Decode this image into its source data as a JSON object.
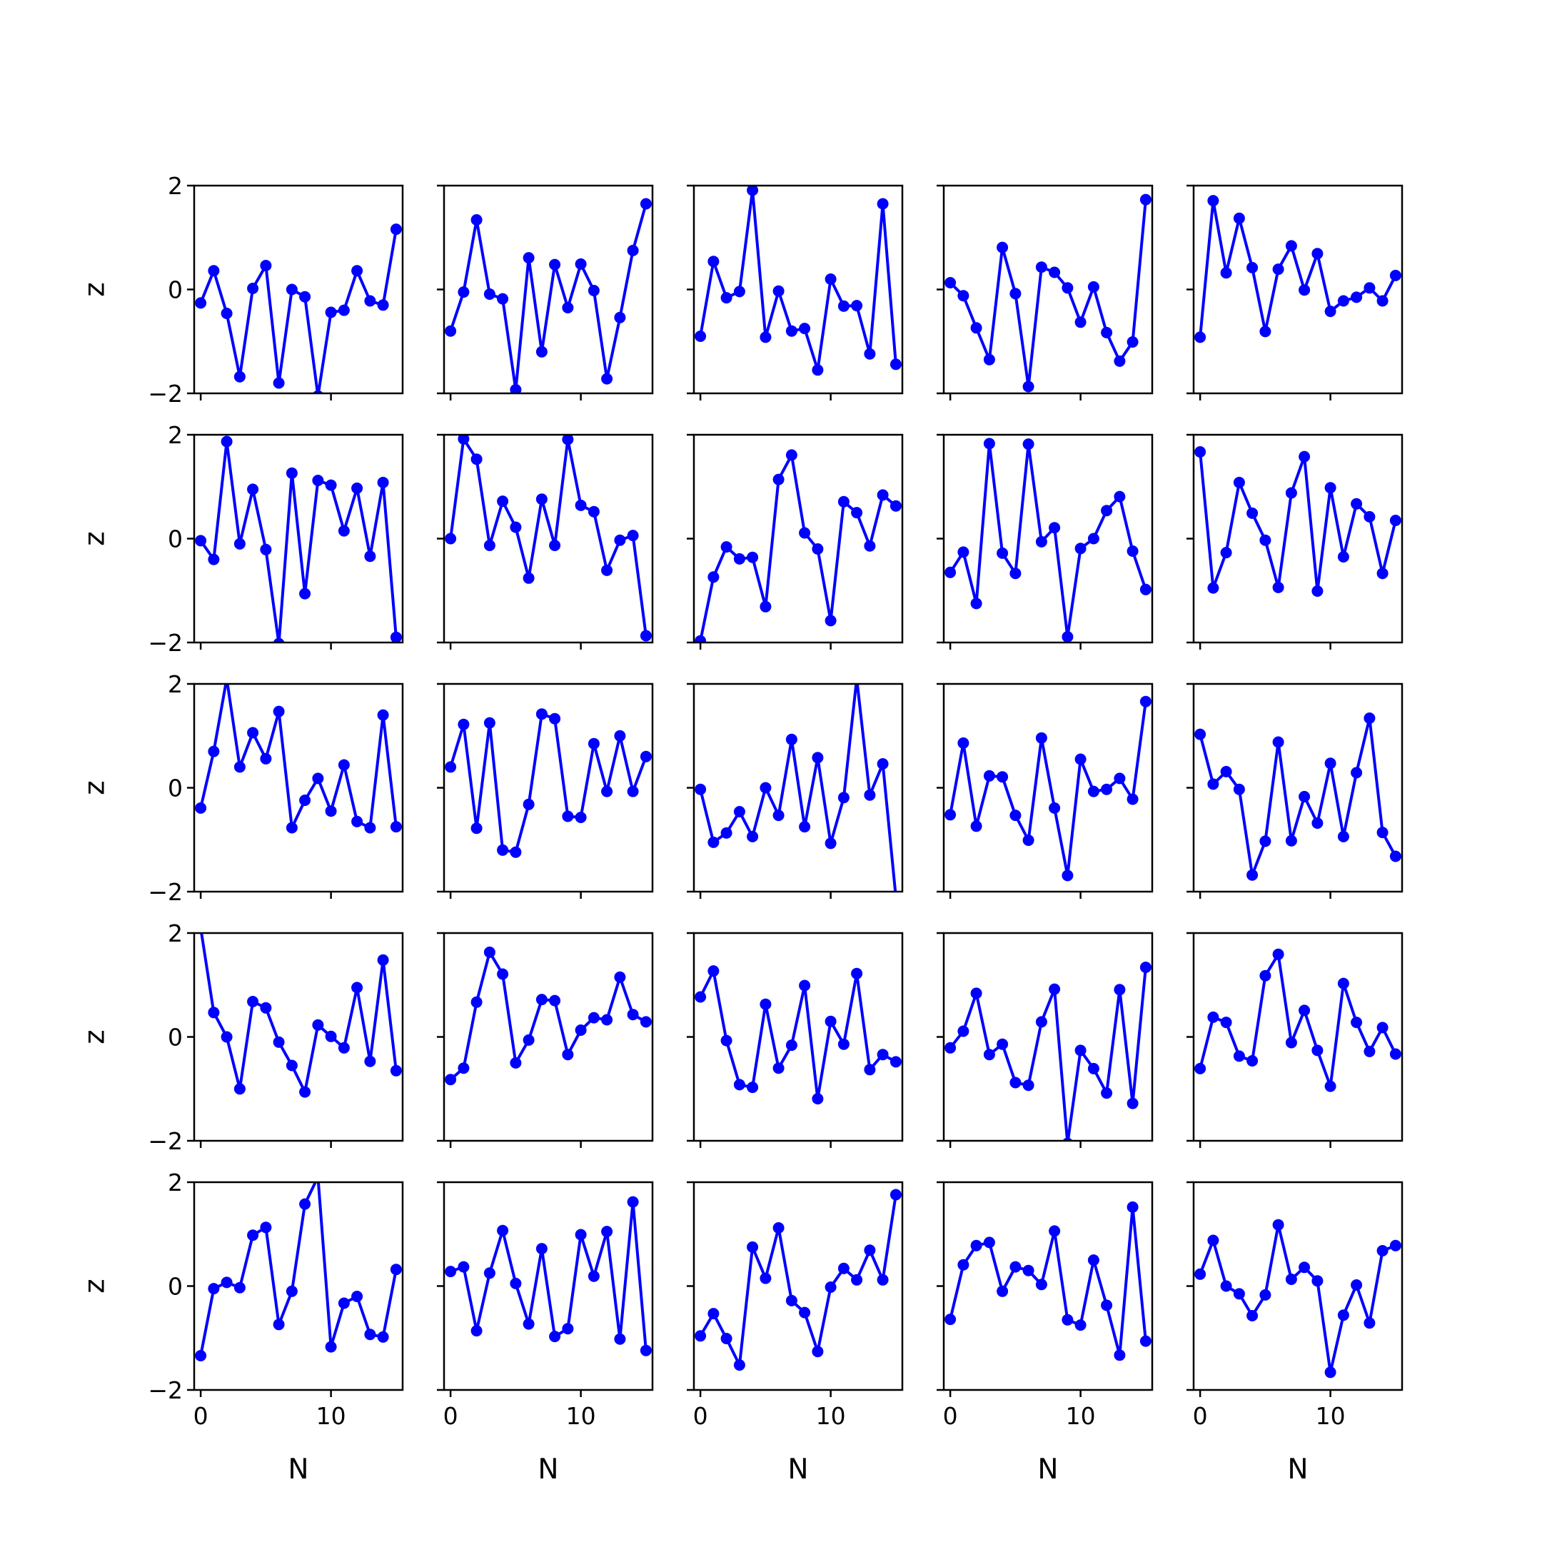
{
  "chart_data": {
    "type": "line",
    "layout": {
      "rows": 5,
      "cols": 5,
      "sharex": true,
      "sharey": true
    },
    "x": [
      0,
      1,
      2,
      3,
      4,
      5,
      6,
      7,
      8,
      9,
      10,
      11,
      12,
      13,
      14,
      15
    ],
    "xlim": [
      -0.5,
      15.5
    ],
    "ylim": [
      -2,
      2
    ],
    "xticks": [
      0,
      10
    ],
    "yticks": [
      -2,
      0,
      2
    ],
    "xtick_labels": [
      "0",
      "10"
    ],
    "ytick_labels": [
      "−2",
      "0",
      "2"
    ],
    "xlabel": "N",
    "ylabel": "z",
    "line_color": "#0000ff",
    "marker": "circle",
    "grid": false,
    "subplots": [
      [
        -0.26,
        0.36,
        -0.46,
        -1.68,
        0.02,
        0.46,
        -1.8,
        0.0,
        -0.14,
        -2.05,
        -0.44,
        -0.4,
        0.36,
        -0.22,
        -0.3,
        1.16
      ],
      [
        -0.8,
        -0.05,
        1.34,
        -0.09,
        -0.18,
        -1.93,
        0.61,
        -1.2,
        0.48,
        -0.35,
        0.49,
        -0.02,
        -1.72,
        -0.54,
        0.75,
        1.65
      ],
      [
        -0.9,
        0.54,
        -0.16,
        -0.04,
        1.91,
        -0.92,
        -0.03,
        -0.8,
        -0.75,
        -1.55,
        0.2,
        -0.32,
        -0.31,
        -1.24,
        1.65,
        -1.44
      ],
      [
        0.13,
        -0.12,
        -0.74,
        -1.35,
        0.81,
        -0.08,
        -1.87,
        0.43,
        0.33,
        0.03,
        -0.63,
        0.05,
        -0.83,
        -1.38,
        -1.01,
        1.73
      ],
      [
        -0.92,
        1.71,
        0.32,
        1.37,
        0.42,
        -0.81,
        0.39,
        0.84,
        -0.01,
        0.69,
        -0.42,
        -0.22,
        -0.15,
        0.03,
        -0.22,
        0.27
      ],
      [
        -0.04,
        -0.4,
        1.87,
        -0.1,
        0.95,
        -0.21,
        -2.02,
        1.26,
        -1.06,
        1.12,
        1.03,
        0.15,
        0.97,
        -0.34,
        1.08,
        -1.9
      ],
      [
        0.0,
        1.92,
        1.53,
        -0.13,
        0.72,
        0.22,
        -0.76,
        0.76,
        -0.13,
        1.91,
        0.64,
        0.52,
        -0.61,
        -0.03,
        0.06,
        -1.87
      ],
      [
        -1.97,
        -0.74,
        -0.16,
        -0.39,
        -0.36,
        -1.31,
        1.14,
        1.61,
        0.11,
        -0.2,
        -1.58,
        0.71,
        0.5,
        -0.14,
        0.84,
        0.63
      ],
      [
        -0.65,
        -0.26,
        -1.25,
        1.83,
        -0.28,
        -0.67,
        1.82,
        -0.06,
        0.21,
        -1.89,
        -0.19,
        0.0,
        0.54,
        0.81,
        -0.24,
        -0.98
      ],
      [
        1.67,
        -0.95,
        -0.27,
        1.08,
        0.49,
        -0.03,
        -0.94,
        0.88,
        1.58,
        -1.01,
        0.98,
        -0.35,
        0.67,
        0.42,
        -0.67,
        0.35
      ],
      [
        -0.39,
        0.7,
        2.1,
        0.4,
        1.06,
        0.56,
        1.47,
        -0.77,
        -0.24,
        0.18,
        -0.45,
        0.44,
        -0.65,
        -0.77,
        1.4,
        -0.75
      ],
      [
        0.4,
        1.22,
        -0.78,
        1.25,
        -1.2,
        -1.24,
        -0.32,
        1.42,
        1.33,
        -0.55,
        -0.57,
        0.85,
        -0.07,
        1.0,
        -0.07,
        0.6
      ],
      [
        -0.03,
        -1.05,
        -0.87,
        -0.46,
        -0.94,
        0.0,
        -0.53,
        0.93,
        -0.75,
        0.58,
        -1.07,
        -0.19,
        2.1,
        -0.14,
        0.46,
        -2.1
      ],
      [
        -0.52,
        0.86,
        -0.74,
        0.23,
        0.21,
        -0.53,
        -1.01,
        0.96,
        -0.39,
        -1.69,
        0.55,
        -0.07,
        -0.03,
        0.18,
        -0.22,
        1.66
      ],
      [
        1.03,
        0.07,
        0.31,
        -0.03,
        -1.68,
        -1.03,
        0.88,
        -1.02,
        -0.17,
        -0.68,
        0.47,
        -0.94,
        0.29,
        1.34,
        -0.86,
        -1.32
      ],
      [
        2.1,
        0.47,
        0.0,
        -1.0,
        0.68,
        0.56,
        -0.1,
        -0.55,
        -1.06,
        0.23,
        0.01,
        -0.21,
        0.95,
        -0.47,
        1.48,
        -0.65
      ],
      [
        -0.82,
        -0.6,
        0.67,
        1.63,
        1.21,
        -0.5,
        -0.06,
        0.72,
        0.7,
        -0.34,
        0.13,
        0.37,
        0.33,
        1.15,
        0.43,
        0.29
      ],
      [
        0.77,
        1.27,
        -0.07,
        -0.92,
        -0.97,
        0.63,
        -0.6,
        -0.16,
        0.99,
        -1.19,
        0.3,
        -0.14,
        1.22,
        -0.63,
        -0.34,
        -0.48
      ],
      [
        -0.21,
        0.11,
        0.84,
        -0.34,
        -0.14,
        -0.88,
        -0.93,
        0.29,
        0.92,
        -2.05,
        -0.26,
        -0.61,
        -1.08,
        0.91,
        -1.28,
        1.34
      ],
      [
        -0.61,
        0.38,
        0.28,
        -0.37,
        -0.46,
        1.18,
        1.59,
        -0.11,
        0.51,
        -0.26,
        -0.95,
        1.03,
        0.28,
        -0.28,
        0.18,
        -0.33
      ],
      [
        -1.34,
        -0.05,
        0.07,
        -0.03,
        0.98,
        1.13,
        -0.74,
        -0.1,
        1.58,
        2.1,
        -1.17,
        -0.33,
        -0.2,
        -0.93,
        -0.98,
        0.32
      ],
      [
        0.28,
        0.37,
        -0.86,
        0.25,
        1.07,
        0.05,
        -0.73,
        0.72,
        -0.97,
        -0.82,
        0.99,
        0.19,
        1.05,
        -1.02,
        1.62,
        -1.24
      ],
      [
        -0.96,
        -0.53,
        -1.01,
        -1.52,
        0.75,
        0.15,
        1.12,
        -0.28,
        -0.51,
        -1.26,
        -0.02,
        0.34,
        0.12,
        0.69,
        0.12,
        1.76
      ],
      [
        -0.64,
        0.41,
        0.78,
        0.84,
        -0.1,
        0.37,
        0.3,
        0.03,
        1.06,
        -0.65,
        -0.75,
        0.5,
        -0.37,
        -1.33,
        1.52,
        -1.06
      ],
      [
        0.23,
        0.88,
        0.0,
        -0.15,
        -0.57,
        -0.17,
        1.18,
        0.13,
        0.36,
        0.1,
        -1.66,
        -0.56,
        0.02,
        -0.71,
        0.68,
        0.78
      ]
    ]
  }
}
